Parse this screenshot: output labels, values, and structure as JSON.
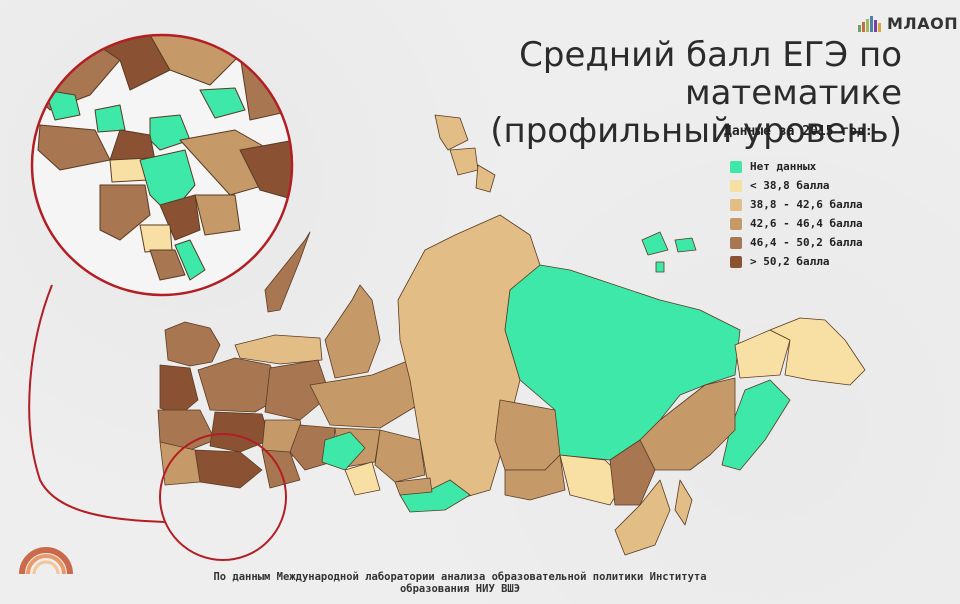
{
  "logo": {
    "text": "МЛАОП",
    "bar_colors": [
      "#6fa06a",
      "#c96b4a",
      "#9bbd5a",
      "#4f7fae",
      "#7e3fa0",
      "#d9a83c",
      "#b5b5b5"
    ]
  },
  "title": {
    "line1": "Средний балл ЕГЭ по математике",
    "line2": "(профильный уровень)"
  },
  "legend": {
    "title": "Данные за 2015 год:",
    "items": [
      {
        "label": "Нет данных",
        "color": "#3ee8a8"
      },
      {
        "label": "< 38,8 балла",
        "color": "#f8dfa4"
      },
      {
        "label": "38,8 - 42,6 балла",
        "color": "#e2bd86"
      },
      {
        "label": "42,6 - 46,4 балла",
        "color": "#c69a68"
      },
      {
        "label": "46,4 - 50,2 балла",
        "color": "#a87650"
      },
      {
        "label": "> 50,2 балла",
        "color": "#8a5232"
      }
    ]
  },
  "source": "По данным Международной лаборатории анализа образовательной политики Института образования НИУ ВШЭ",
  "colors": {
    "nodata": "#3ee8a8",
    "c1": "#f8dfa4",
    "c2": "#e2bd86",
    "c3": "#c69a68",
    "c4": "#a87650",
    "c5": "#8a5232",
    "callout": "#b21e24",
    "border": "#5a3b24"
  }
}
